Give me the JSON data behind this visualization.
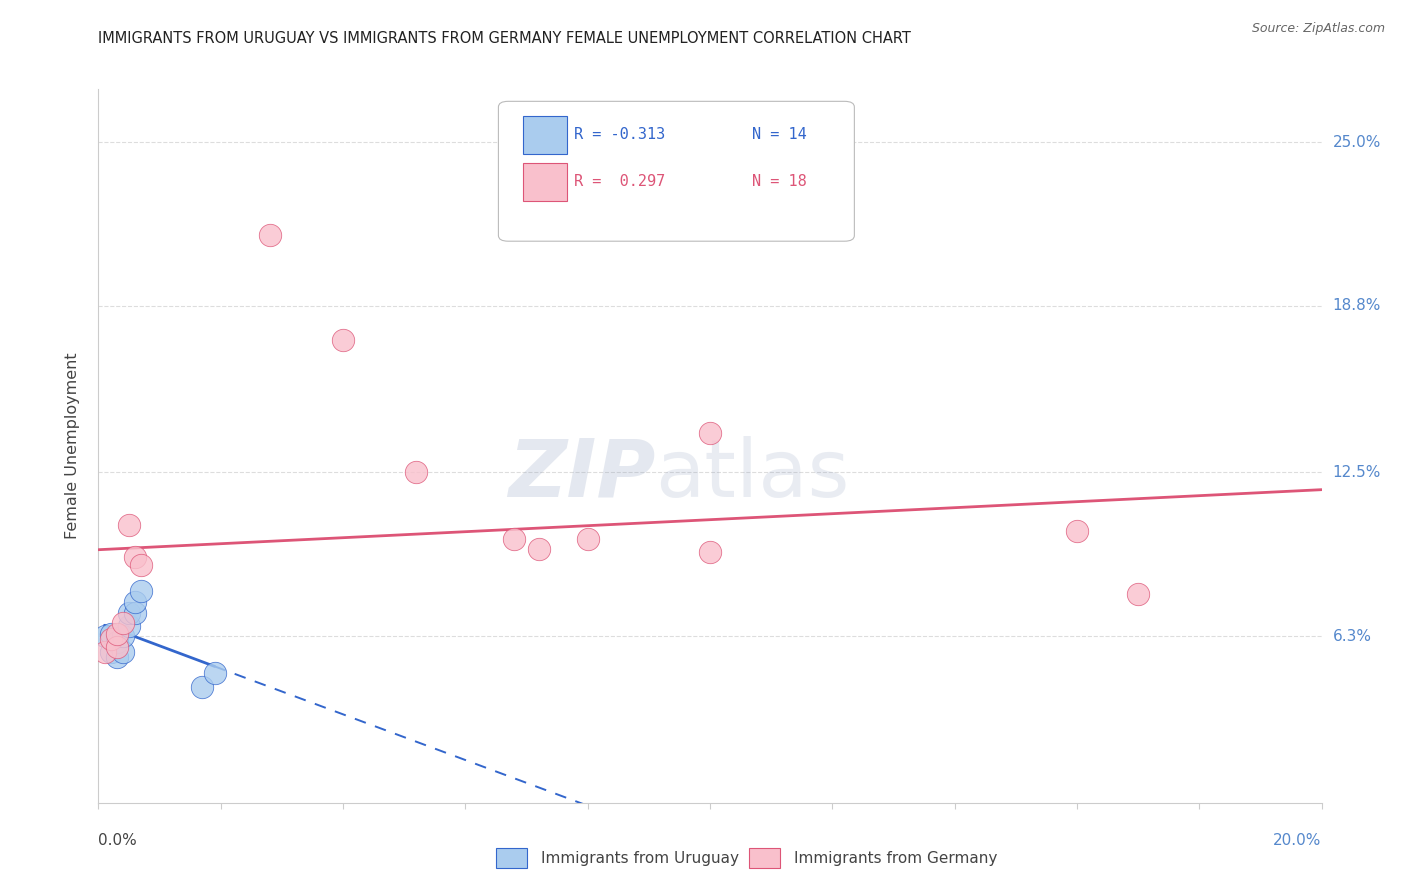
{
  "title": "IMMIGRANTS FROM URUGUAY VS IMMIGRANTS FROM GERMANY FEMALE UNEMPLOYMENT CORRELATION CHART",
  "source": "Source: ZipAtlas.com",
  "ylabel": "Female Unemployment",
  "ytick_vals": [
    0.0,
    0.063,
    0.125,
    0.188,
    0.25
  ],
  "ytick_labels": [
    "",
    "6.3%",
    "12.5%",
    "18.8%",
    "25.0%"
  ],
  "xlim": [
    0.0,
    0.2
  ],
  "ylim": [
    0.0,
    0.27
  ],
  "watermark_zip": "ZIP",
  "watermark_atlas": "atlas",
  "legend_r1": "R = -0.313",
  "legend_n1": "N = 14",
  "legend_r2": "R =  0.297",
  "legend_n2": "N = 18",
  "legend_label1": "Immigrants from Uruguay",
  "legend_label2": "Immigrants from Germany",
  "uruguay_color": "#aaccee",
  "germany_color": "#f9c0cc",
  "trendline1_color": "#3366cc",
  "trendline2_color": "#dd5577",
  "uruguay_x": [
    0.001,
    0.002,
    0.002,
    0.003,
    0.003,
    0.004,
    0.004,
    0.005,
    0.005,
    0.006,
    0.006,
    0.007,
    0.017,
    0.019
  ],
  "uruguay_y": [
    0.063,
    0.057,
    0.064,
    0.055,
    0.061,
    0.057,
    0.063,
    0.067,
    0.072,
    0.072,
    0.076,
    0.08,
    0.044,
    0.049
  ],
  "germany_x": [
    0.001,
    0.002,
    0.003,
    0.003,
    0.004,
    0.005,
    0.006,
    0.007,
    0.028,
    0.04,
    0.052,
    0.068,
    0.072,
    0.08,
    0.1,
    0.1,
    0.16,
    0.17
  ],
  "germany_y": [
    0.057,
    0.062,
    0.059,
    0.064,
    0.068,
    0.105,
    0.093,
    0.09,
    0.215,
    0.175,
    0.125,
    0.1,
    0.096,
    0.1,
    0.095,
    0.14,
    0.103,
    0.079
  ],
  "background_color": "#ffffff",
  "grid_color": "#dddddd",
  "spine_color": "#cccccc",
  "ytick_color": "#5588cc",
  "xtick_color_left": "#444444",
  "xtick_color_right": "#5588cc"
}
